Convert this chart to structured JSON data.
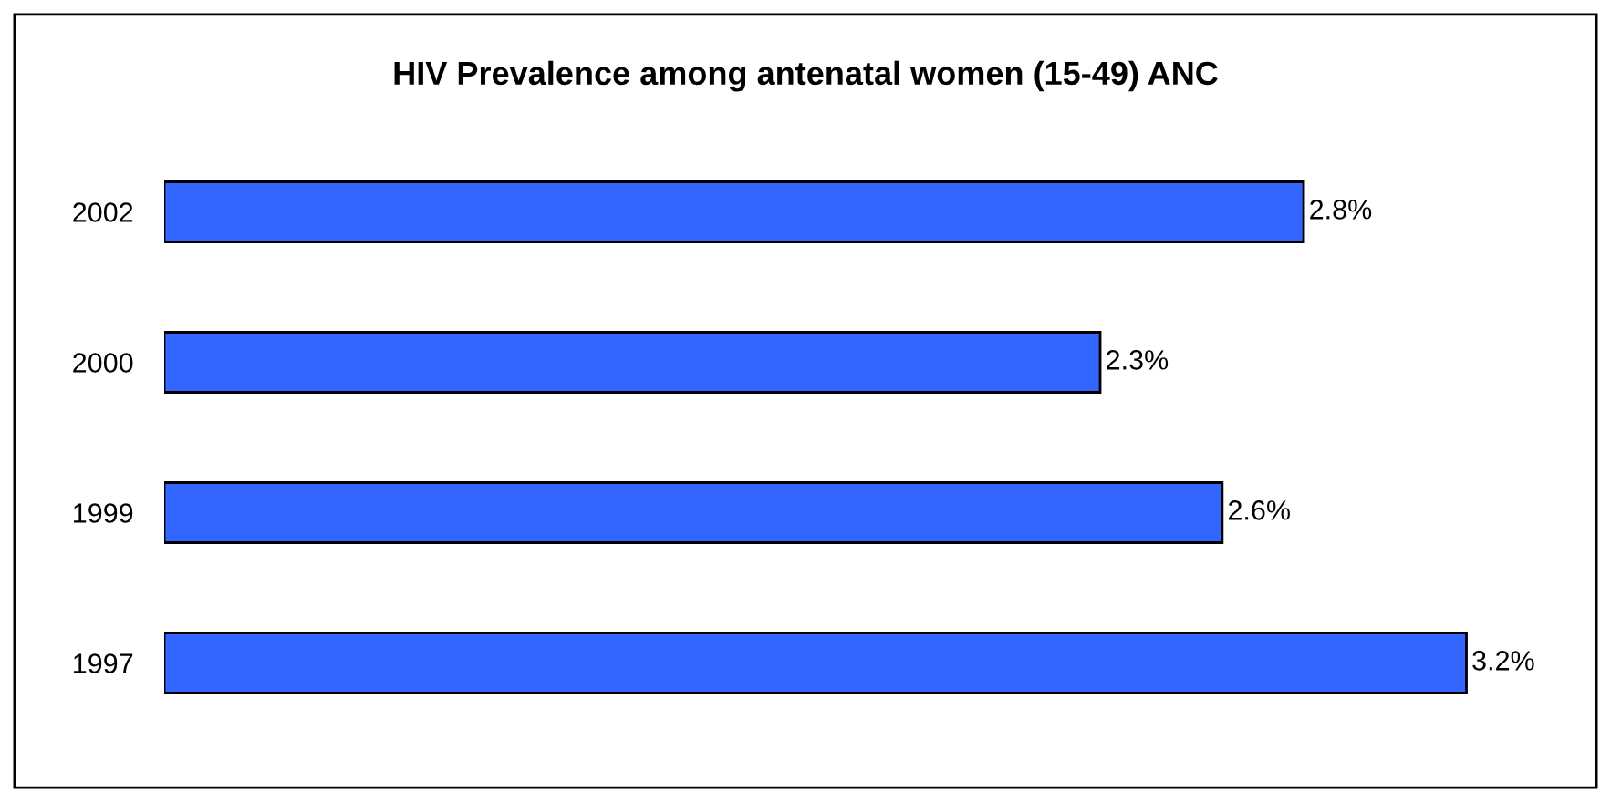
{
  "chart_data": {
    "type": "bar",
    "orientation": "horizontal",
    "title": "HIV Prevalence among antenatal women (15-49) ANC",
    "categories": [
      "2002",
      "2000",
      "1999",
      "1997"
    ],
    "values": [
      2.8,
      2.3,
      2.6,
      3.2
    ],
    "value_labels": [
      "2.8%",
      "2.3%",
      "2.6%",
      "3.2%"
    ],
    "color": "#3366ff",
    "tick_labels": "y",
    "grid": false,
    "legend": false
  }
}
